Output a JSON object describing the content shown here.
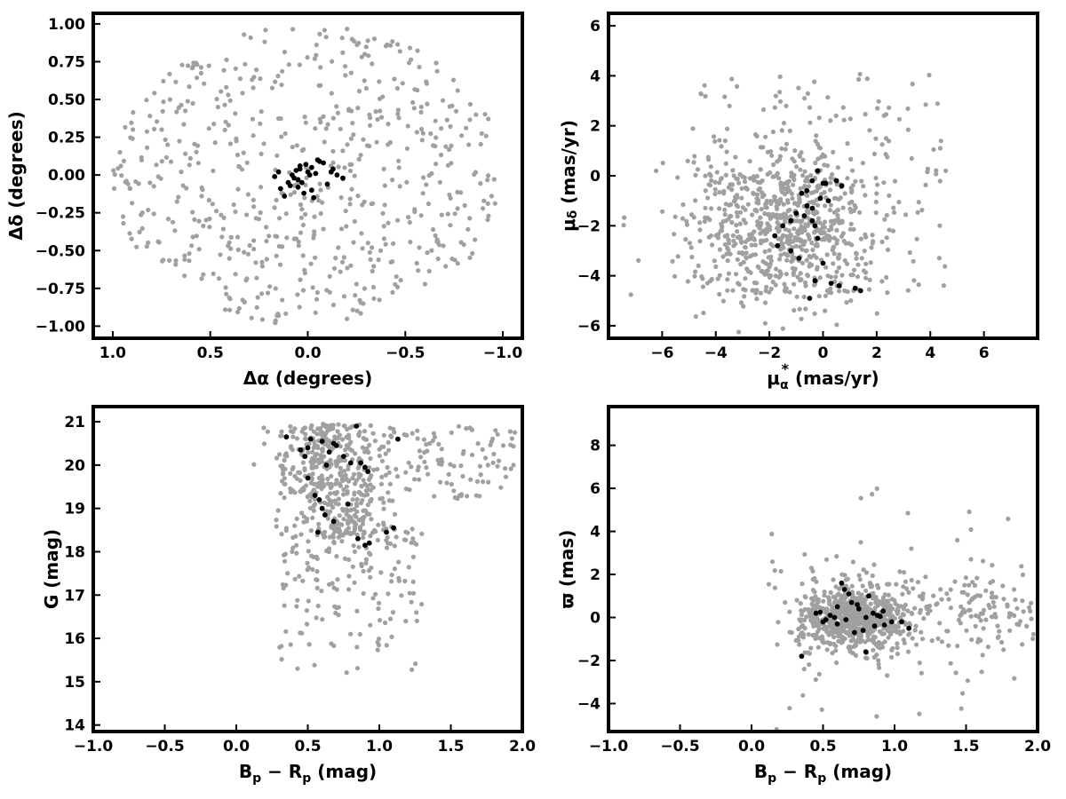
{
  "colors": {
    "field": "#a0a0a0",
    "members": "#000000",
    "frame": "#000000",
    "background": "#ffffff"
  },
  "chart_data": [
    {
      "id": "sky",
      "type": "scatter",
      "title": "",
      "xlabel_main": "Δα (degrees)",
      "xlabel_sub": "",
      "ylabel_main": "Δδ (degrees)",
      "ylabel_sub": "",
      "xlim": [
        1.1,
        -1.1
      ],
      "ylim": [
        -1.08,
        1.07
      ],
      "xticks": [
        1.0,
        0.5,
        0.0,
        -0.5,
        -1.0
      ],
      "xtick_labels": [
        "1.0",
        "0.5",
        "0.0",
        "−0.5",
        "−1.0"
      ],
      "yticks": [
        1.0,
        0.75,
        0.5,
        0.25,
        0.0,
        -0.25,
        -0.5,
        -0.75,
        -1.0
      ],
      "ytick_labels": [
        "1.00",
        "0.75",
        "0.50",
        "0.25",
        "0.00",
        "−0.25",
        "−0.50",
        "−0.75",
        "−1.00"
      ],
      "grid": false,
      "field": {
        "shape": "disk",
        "center": [
          0.0,
          0.0
        ],
        "radius": 1.0,
        "count": 600
      },
      "members": {
        "x": [
          -0.08,
          -0.05,
          -0.12,
          -0.15,
          -0.18,
          -0.02,
          0.0,
          0.03,
          0.05,
          0.04,
          0.02,
          -0.03,
          0.06,
          0.08,
          0.1,
          -0.1,
          -0.13,
          0.12,
          0.15,
          0.17,
          -0.06,
          -0.02,
          0.01,
          0.04,
          0.07,
          -0.01,
          0.05,
          0.09,
          0.14,
          -0.04
        ],
        "y": [
          0.08,
          0.1,
          0.02,
          0.0,
          -0.02,
          0.05,
          0.02,
          -0.05,
          -0.08,
          0.06,
          -0.12,
          -0.15,
          0.03,
          0.0,
          -0.05,
          -0.06,
          0.04,
          -0.14,
          0.02,
          -0.01,
          0.09,
          -0.1,
          0.07,
          0.04,
          -0.02,
          0.0,
          -0.03,
          -0.07,
          -0.09,
          0.01
        ]
      }
    },
    {
      "id": "pm",
      "type": "scatter",
      "title": "",
      "xlabel_main": "μ",
      "xlabel_sub": "α",
      "xlabel_sup": "*",
      "xlabel_tail": " (mas/yr)",
      "ylabel_main": "μ",
      "ylabel_sub": "δ",
      "ylabel_tail": " (mas/yr)",
      "xlim": [
        -8.0,
        8.0
      ],
      "ylim": [
        -6.5,
        6.5
      ],
      "xticks": [
        -6,
        -4,
        -2,
        0,
        2,
        4,
        6
      ],
      "xtick_labels": [
        "−6",
        "−4",
        "−2",
        "0",
        "2",
        "4",
        "6"
      ],
      "yticks": [
        -6,
        -4,
        -2,
        0,
        2,
        4,
        6
      ],
      "ytick_labels": [
        "−6",
        "−4",
        "−2",
        "0",
        "2",
        "4",
        "6"
      ],
      "grid": false,
      "field": {
        "shape": "blob",
        "center": [
          -1.5,
          -2.0
        ],
        "spread": [
          1.8,
          1.6
        ],
        "count": 900
      },
      "members": {
        "x": [
          -0.2,
          0.0,
          -0.4,
          -0.8,
          -1.0,
          -1.2,
          -0.6,
          -1.5,
          -1.8,
          -1.7,
          -0.3,
          0.3,
          0.6,
          0.7,
          0.5,
          -0.5,
          -0.9,
          1.4,
          1.2,
          -1.2,
          -0.4,
          -0.2,
          0.1,
          -0.7,
          0.2,
          -0.6,
          0.0,
          -0.3,
          -0.1,
          -0.4
        ],
        "y": [
          0.2,
          -0.3,
          -0.2,
          -0.7,
          -1.5,
          -1.8,
          -1.2,
          -2.0,
          -2.4,
          -2.8,
          -4.2,
          -4.3,
          -4.4,
          -0.4,
          -0.2,
          -4.9,
          -3.3,
          -4.6,
          -4.5,
          -3.0,
          -1.3,
          -2.5,
          -0.3,
          -1.6,
          -1.0,
          -0.6,
          -3.5,
          -2.0,
          -0.9,
          -1.8
        ]
      }
    },
    {
      "id": "cmd",
      "type": "scatter",
      "title": "",
      "xlabel_main": "B",
      "xlabel_sub": "p",
      "xlabel_mid": " − R",
      "xlabel_sub2": "p",
      "xlabel_tail": " (mag)",
      "ylabel_main": "G (mag)",
      "ylabel_sub": "",
      "xlim": [
        -1.0,
        2.0
      ],
      "ylim": [
        13.85,
        21.35
      ],
      "xticks": [
        -1.0,
        -0.5,
        0.0,
        0.5,
        1.0,
        1.5,
        2.0
      ],
      "xtick_labels": [
        "−1.0",
        "−0.5",
        "0.0",
        "0.5",
        "1.0",
        "1.5",
        "2.0"
      ],
      "yticks": [
        14,
        15,
        16,
        17,
        18,
        19,
        20,
        21
      ],
      "ytick_labels": [
        "14",
        "15",
        "16",
        "17",
        "18",
        "19",
        "20",
        "21"
      ],
      "grid": false,
      "field": {
        "shape": "cmd",
        "count": 750
      },
      "members": {
        "x": [
          0.35,
          0.45,
          0.48,
          0.5,
          0.52,
          0.6,
          0.63,
          0.65,
          0.68,
          0.7,
          0.75,
          0.8,
          0.84,
          0.87,
          0.9,
          0.92,
          0.55,
          0.58,
          0.6,
          0.62,
          0.9,
          0.93,
          1.05,
          1.1,
          1.13,
          0.57,
          0.68,
          0.78,
          0.85,
          0.5
        ],
        "y": [
          20.65,
          20.35,
          20.2,
          20.4,
          20.6,
          20.55,
          20.0,
          20.3,
          20.5,
          20.45,
          20.2,
          20.05,
          20.9,
          20.05,
          19.95,
          19.85,
          19.3,
          19.2,
          19.0,
          18.85,
          18.15,
          18.2,
          18.45,
          18.55,
          20.6,
          18.45,
          18.7,
          19.1,
          18.3,
          19.7
        ]
      }
    },
    {
      "id": "parallax",
      "type": "scatter",
      "title": "",
      "xlabel_main": "B",
      "xlabel_sub": "p",
      "xlabel_mid": " − R",
      "xlabel_sub2": "p",
      "xlabel_tail": " (mag)",
      "ylabel_main": "ϖ (mas)",
      "ylabel_sub": "",
      "xlim": [
        -1.0,
        2.0
      ],
      "ylim": [
        -5.3,
        9.8
      ],
      "xticks": [
        -1.0,
        -0.5,
        0.0,
        0.5,
        1.0,
        1.5,
        2.0
      ],
      "xtick_labels": [
        "−1.0",
        "−0.5",
        "0.0",
        "0.5",
        "1.0",
        "1.5",
        "2.0"
      ],
      "yticks": [
        -4,
        -2,
        0,
        2,
        4,
        6,
        8
      ],
      "ytick_labels": [
        "−4",
        "−2",
        "0",
        "2",
        "4",
        "6",
        "8"
      ],
      "grid": false,
      "field": {
        "shape": "band",
        "count": 850
      },
      "members": {
        "x": [
          0.35,
          0.45,
          0.48,
          0.5,
          0.55,
          0.6,
          0.63,
          0.65,
          0.68,
          0.7,
          0.75,
          0.8,
          0.82,
          0.85,
          0.88,
          0.9,
          0.93,
          1.05,
          1.1,
          0.58,
          0.72,
          0.78,
          0.6,
          0.66,
          0.92,
          0.52,
          0.74,
          0.86,
          0.98,
          0.8
        ],
        "y": [
          -1.8,
          0.2,
          0.25,
          -0.2,
          0.1,
          -0.3,
          1.6,
          1.3,
          1.1,
          0.7,
          0.4,
          0.0,
          1.0,
          0.2,
          0.1,
          0.05,
          -0.35,
          -0.2,
          -0.5,
          0.0,
          -0.7,
          -0.6,
          0.5,
          -0.1,
          0.3,
          -0.1,
          0.6,
          -0.4,
          -0.2,
          -1.6
        ]
      }
    }
  ]
}
